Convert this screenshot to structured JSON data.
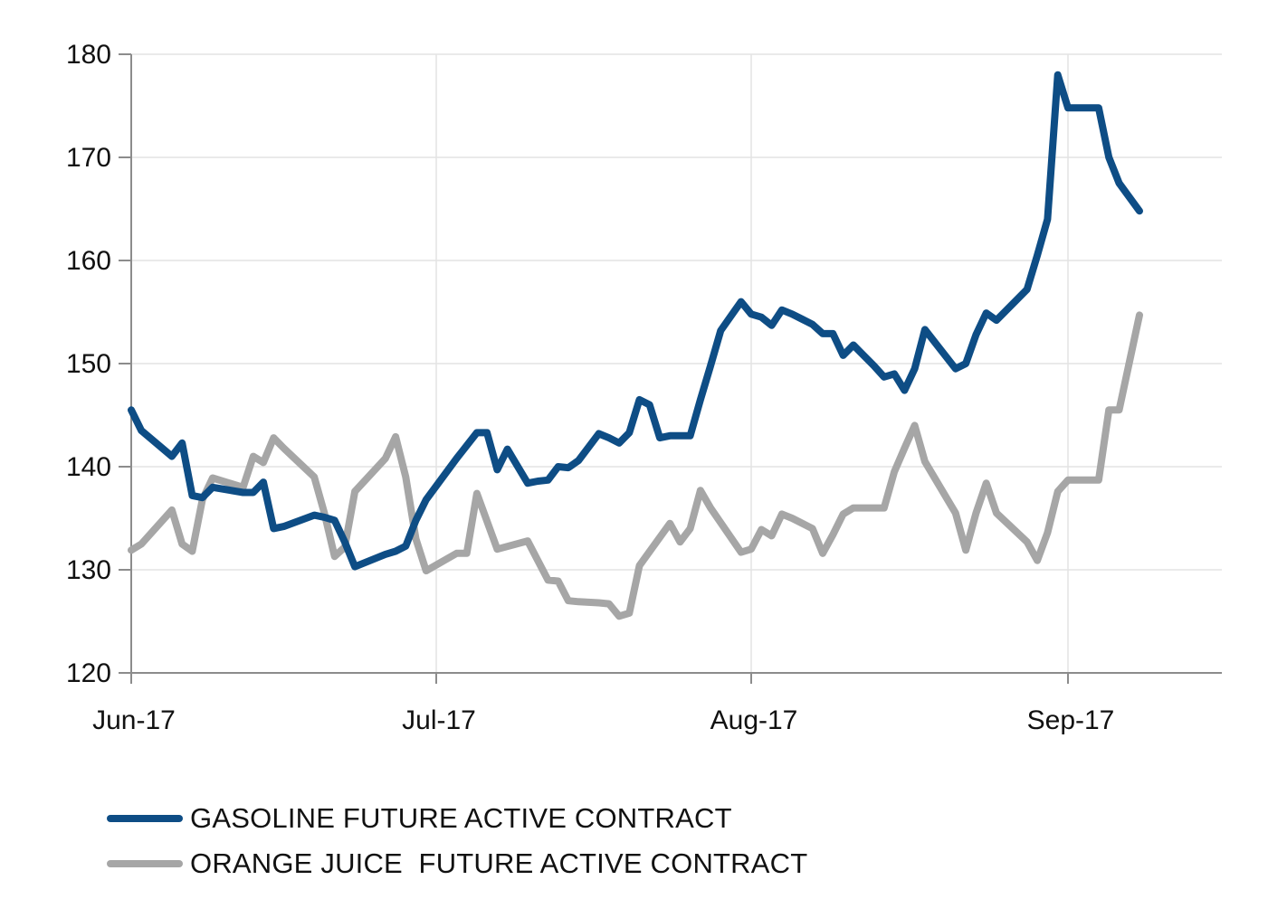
{
  "chart_data": {
    "type": "line",
    "ylim": [
      120,
      180
    ],
    "yticks": [
      120,
      130,
      140,
      150,
      160,
      170,
      180
    ],
    "xticks": [
      {
        "label": "Jun-17",
        "date": "2017-06-01"
      },
      {
        "label": "Jul-17",
        "date": "2017-07-01"
      },
      {
        "label": "Aug-17",
        "date": "2017-08-01"
      },
      {
        "label": "Sep-17",
        "date": "2017-09-01"
      }
    ],
    "grid": true,
    "legend_position": "bottom-left",
    "series": [
      {
        "name": "GASOLINE FUTURE ACTIVE CONTRACT",
        "color": "#0e4d85",
        "points": [
          [
            "2017-06-01",
            145.5
          ],
          [
            "2017-06-02",
            143.5
          ],
          [
            "2017-06-05",
            141.0
          ],
          [
            "2017-06-06",
            142.3
          ],
          [
            "2017-06-07",
            137.2
          ],
          [
            "2017-06-08",
            137.0
          ],
          [
            "2017-06-09",
            138.0
          ],
          [
            "2017-06-12",
            137.5
          ],
          [
            "2017-06-13",
            137.5
          ],
          [
            "2017-06-14",
            138.5
          ],
          [
            "2017-06-15",
            134.0
          ],
          [
            "2017-06-16",
            134.2
          ],
          [
            "2017-06-19",
            135.3
          ],
          [
            "2017-06-20",
            135.1
          ],
          [
            "2017-06-21",
            134.8
          ],
          [
            "2017-06-22",
            132.7
          ],
          [
            "2017-06-23",
            130.3
          ],
          [
            "2017-06-26",
            131.5
          ],
          [
            "2017-06-27",
            131.8
          ],
          [
            "2017-06-28",
            132.3
          ],
          [
            "2017-06-29",
            134.8
          ],
          [
            "2017-06-30",
            136.8
          ],
          [
            "2017-07-03",
            140.8
          ],
          [
            "2017-07-05",
            143.3
          ],
          [
            "2017-07-06",
            143.3
          ],
          [
            "2017-07-07",
            139.7
          ],
          [
            "2017-07-08",
            141.7
          ],
          [
            "2017-07-10",
            138.4
          ],
          [
            "2017-07-11",
            138.6
          ],
          [
            "2017-07-12",
            138.7
          ],
          [
            "2017-07-13",
            140.0
          ],
          [
            "2017-07-14",
            139.9
          ],
          [
            "2017-07-15",
            140.6
          ],
          [
            "2017-07-17",
            143.2
          ],
          [
            "2017-07-18",
            142.8
          ],
          [
            "2017-07-19",
            142.3
          ],
          [
            "2017-07-20",
            143.3
          ],
          [
            "2017-07-21",
            146.5
          ],
          [
            "2017-07-22",
            146.0
          ],
          [
            "2017-07-23",
            142.8
          ],
          [
            "2017-07-24",
            143.0
          ],
          [
            "2017-07-26",
            143.0
          ],
          [
            "2017-07-27",
            146.5
          ],
          [
            "2017-07-28",
            149.8
          ],
          [
            "2017-07-29",
            153.2
          ],
          [
            "2017-07-30",
            154.6
          ],
          [
            "2017-07-31",
            156.0
          ],
          [
            "2017-08-01",
            154.8
          ],
          [
            "2017-08-02",
            154.5
          ],
          [
            "2017-08-03",
            153.7
          ],
          [
            "2017-08-04",
            155.2
          ],
          [
            "2017-08-05",
            154.8
          ],
          [
            "2017-08-06",
            154.3
          ],
          [
            "2017-08-07",
            153.8
          ],
          [
            "2017-08-08",
            152.9
          ],
          [
            "2017-08-09",
            152.9
          ],
          [
            "2017-08-10",
            150.8
          ],
          [
            "2017-08-11",
            151.8
          ],
          [
            "2017-08-12",
            150.8
          ],
          [
            "2017-08-13",
            149.8
          ],
          [
            "2017-08-14",
            148.7
          ],
          [
            "2017-08-15",
            149.0
          ],
          [
            "2017-08-16",
            147.4
          ],
          [
            "2017-08-17",
            149.5
          ],
          [
            "2017-08-18",
            153.3
          ],
          [
            "2017-08-21",
            149.5
          ],
          [
            "2017-08-22",
            150.0
          ],
          [
            "2017-08-23",
            152.8
          ],
          [
            "2017-08-24",
            154.9
          ],
          [
            "2017-08-25",
            154.2
          ],
          [
            "2017-08-28",
            157.2
          ],
          [
            "2017-08-29",
            160.5
          ],
          [
            "2017-08-30",
            164.0
          ],
          [
            "2017-08-31",
            178.0
          ],
          [
            "2017-09-01",
            174.8
          ],
          [
            "2017-09-04",
            174.8
          ],
          [
            "2017-09-05",
            170.0
          ],
          [
            "2017-09-06",
            167.5
          ],
          [
            "2017-09-08",
            164.8
          ]
        ]
      },
      {
        "name": "ORANGE JUICE  FUTURE ACTIVE CONTRACT",
        "color": "#a6a6a6",
        "points": [
          [
            "2017-06-01",
            131.9
          ],
          [
            "2017-06-02",
            132.5
          ],
          [
            "2017-06-05",
            135.8
          ],
          [
            "2017-06-06",
            132.5
          ],
          [
            "2017-06-07",
            131.8
          ],
          [
            "2017-06-08",
            136.8
          ],
          [
            "2017-06-09",
            138.9
          ],
          [
            "2017-06-12",
            138.0
          ],
          [
            "2017-06-13",
            141.0
          ],
          [
            "2017-06-14",
            140.4
          ],
          [
            "2017-06-15",
            142.8
          ],
          [
            "2017-06-16",
            141.8
          ],
          [
            "2017-06-19",
            139.0
          ],
          [
            "2017-06-20",
            135.5
          ],
          [
            "2017-06-21",
            131.3
          ],
          [
            "2017-06-22",
            132.2
          ],
          [
            "2017-06-23",
            137.6
          ],
          [
            "2017-06-26",
            140.8
          ],
          [
            "2017-06-27",
            142.9
          ],
          [
            "2017-06-28",
            139.0
          ],
          [
            "2017-06-29",
            133.0
          ],
          [
            "2017-06-30",
            129.9
          ],
          [
            "2017-07-03",
            131.6
          ],
          [
            "2017-07-04",
            131.6
          ],
          [
            "2017-07-05",
            137.4
          ],
          [
            "2017-07-07",
            132.0
          ],
          [
            "2017-07-10",
            132.8
          ],
          [
            "2017-07-12",
            129.0
          ],
          [
            "2017-07-13",
            128.9
          ],
          [
            "2017-07-14",
            127.0
          ],
          [
            "2017-07-15",
            126.9
          ],
          [
            "2017-07-17",
            126.8
          ],
          [
            "2017-07-18",
            126.7
          ],
          [
            "2017-07-19",
            125.5
          ],
          [
            "2017-07-20",
            125.8
          ],
          [
            "2017-07-21",
            130.4
          ],
          [
            "2017-07-24",
            134.5
          ],
          [
            "2017-07-25",
            132.7
          ],
          [
            "2017-07-26",
            134.0
          ],
          [
            "2017-07-27",
            137.7
          ],
          [
            "2017-07-28",
            136.0
          ],
          [
            "2017-07-31",
            131.7
          ],
          [
            "2017-08-01",
            132.0
          ],
          [
            "2017-08-02",
            133.9
          ],
          [
            "2017-08-03",
            133.3
          ],
          [
            "2017-08-04",
            135.4
          ],
          [
            "2017-08-05",
            135.0
          ],
          [
            "2017-08-07",
            134.0
          ],
          [
            "2017-08-08",
            131.6
          ],
          [
            "2017-08-09",
            133.4
          ],
          [
            "2017-08-10",
            135.4
          ],
          [
            "2017-08-11",
            136.0
          ],
          [
            "2017-08-14",
            136.0
          ],
          [
            "2017-08-15",
            139.5
          ],
          [
            "2017-08-16",
            141.8
          ],
          [
            "2017-08-17",
            144.0
          ],
          [
            "2017-08-18",
            140.5
          ],
          [
            "2017-08-21",
            135.5
          ],
          [
            "2017-08-22",
            131.9
          ],
          [
            "2017-08-23",
            135.5
          ],
          [
            "2017-08-24",
            138.4
          ],
          [
            "2017-08-25",
            135.5
          ],
          [
            "2017-08-28",
            132.7
          ],
          [
            "2017-08-29",
            130.9
          ],
          [
            "2017-08-30",
            133.6
          ],
          [
            "2017-08-31",
            137.6
          ],
          [
            "2017-09-01",
            138.7
          ],
          [
            "2017-09-04",
            138.7
          ],
          [
            "2017-09-05",
            145.5
          ],
          [
            "2017-09-06",
            145.5
          ],
          [
            "2017-09-08",
            154.7
          ]
        ]
      }
    ]
  }
}
